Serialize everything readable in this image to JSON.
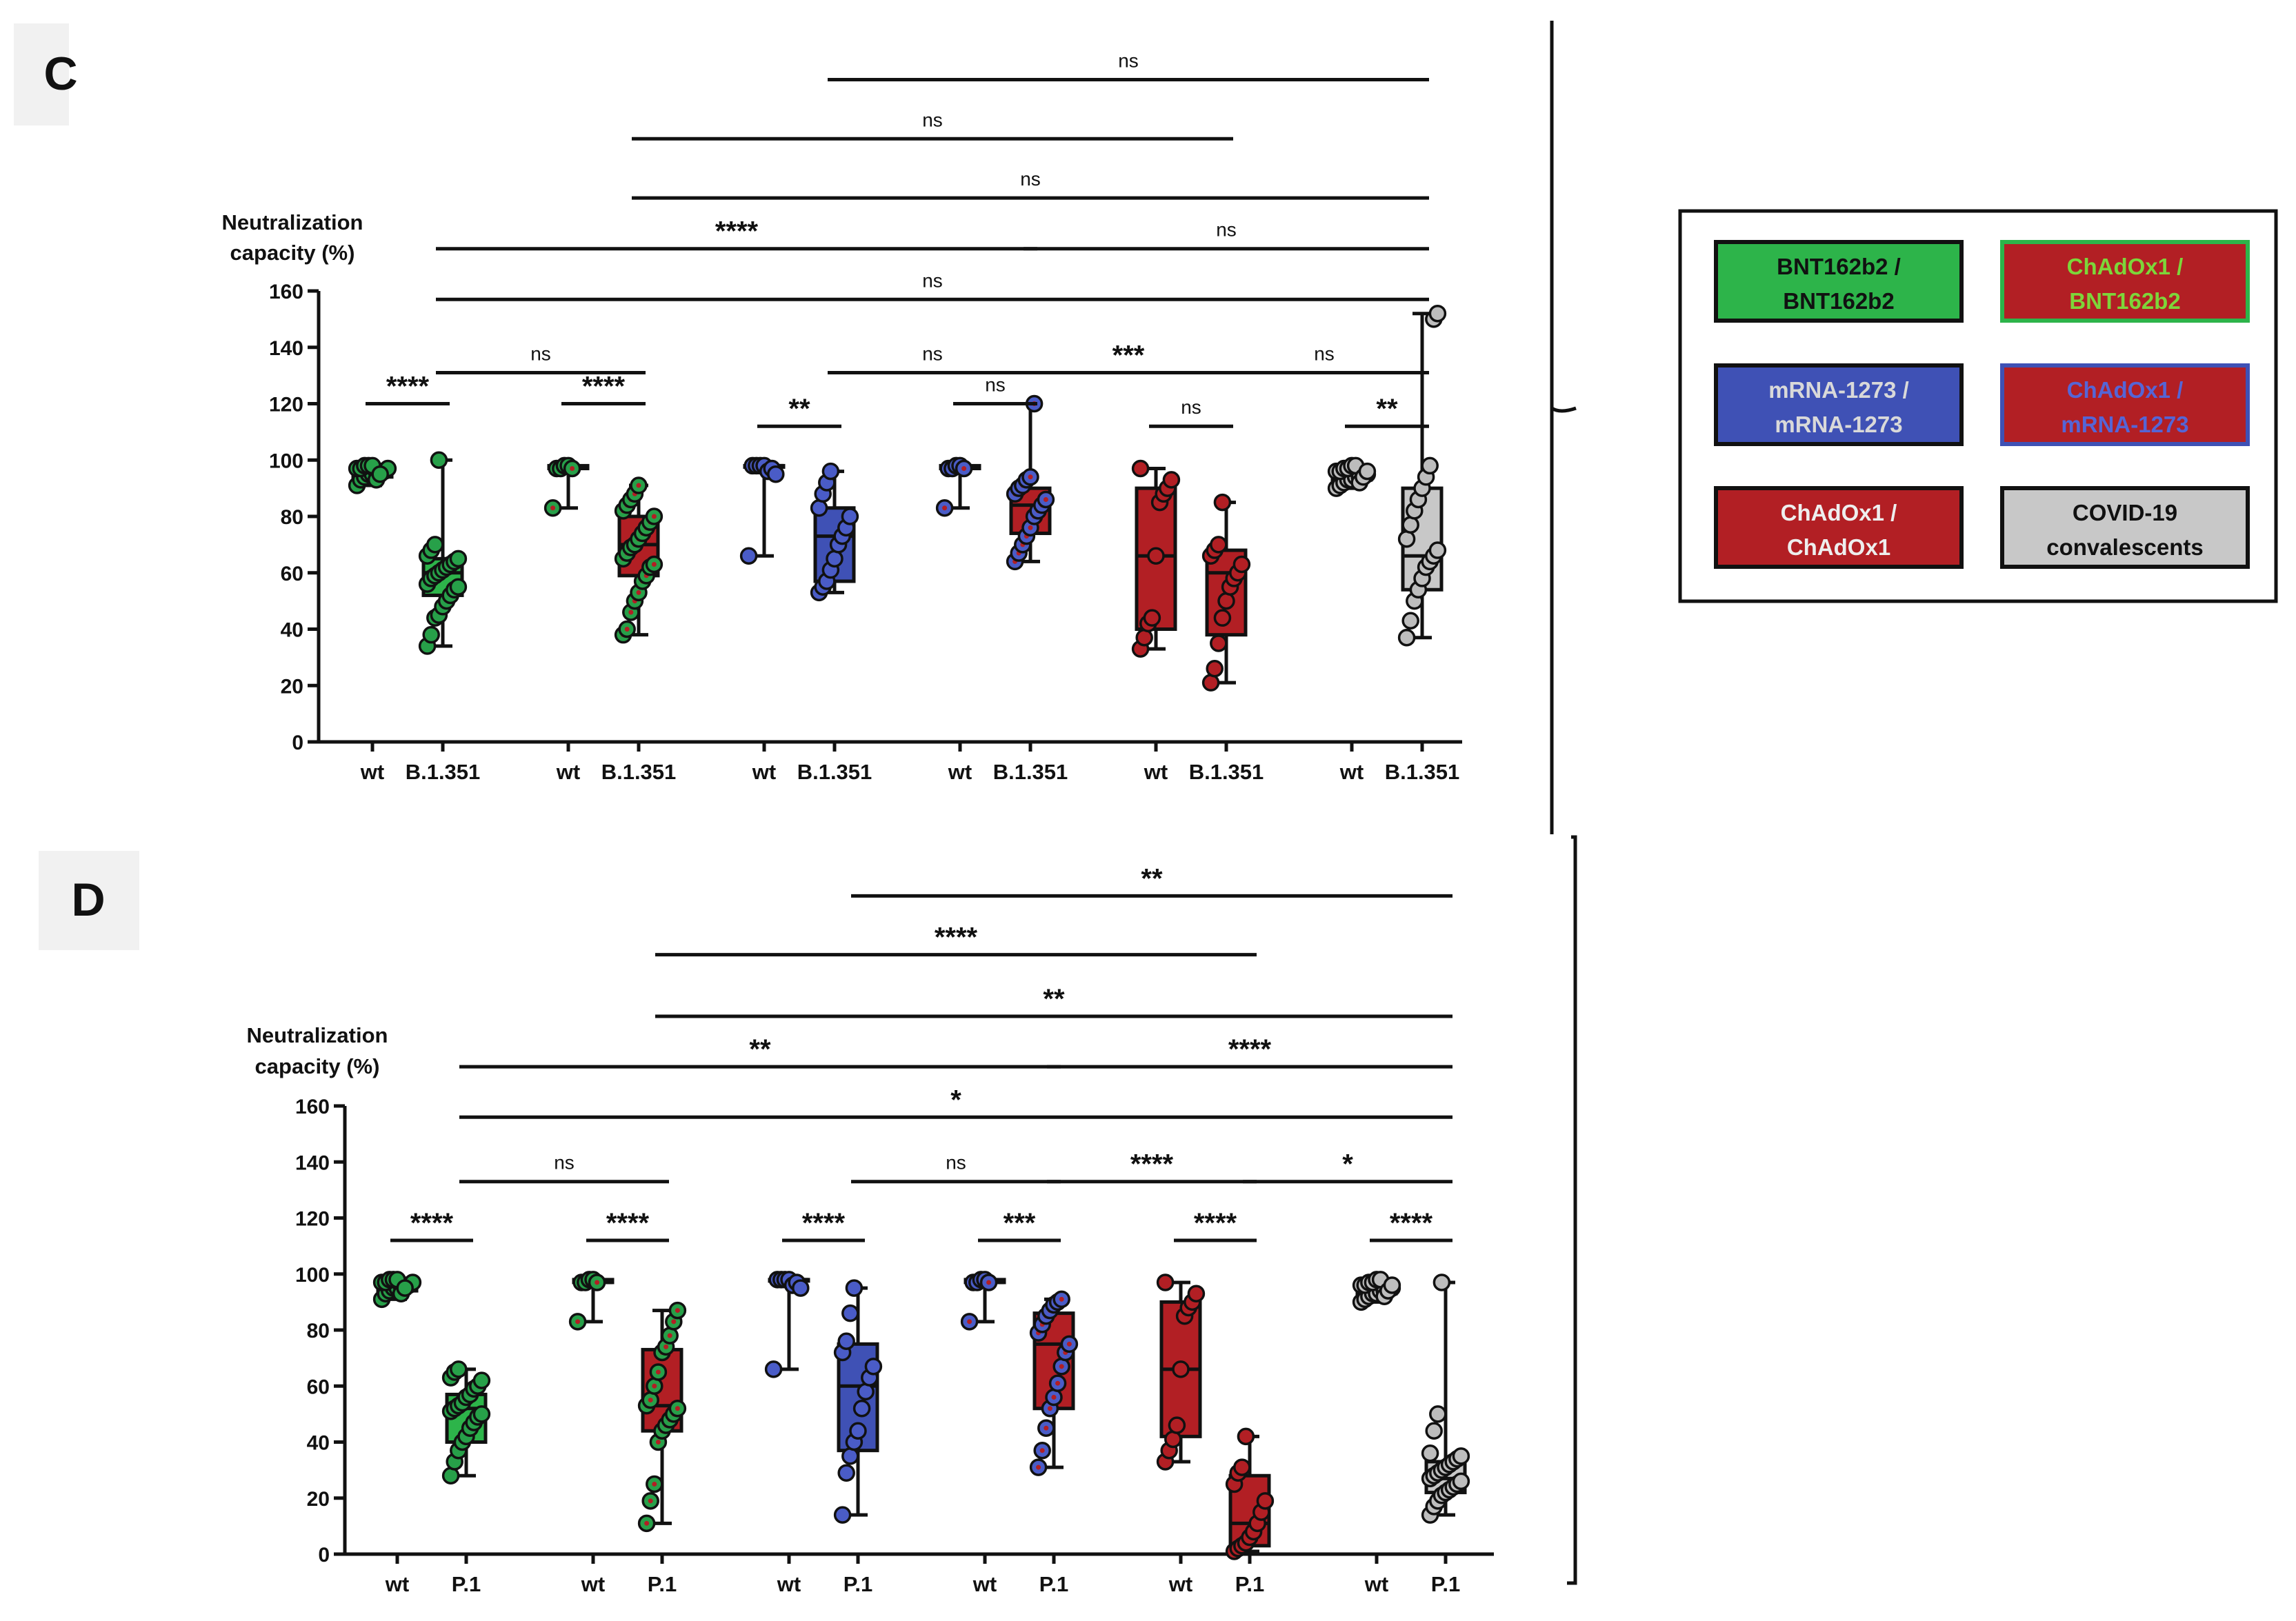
{
  "colors": {
    "bnt": "#2db44a",
    "bnt_dot": "#27a049",
    "mrna": "#3f51b5",
    "mrna_dot": "#4a5cc7",
    "chad": "#b21f24",
    "chad_dot": "#b21f24",
    "conv": "#c8c8c8",
    "conv_dot": "#bdbdbd",
    "dot_center_red": "#b21f24",
    "dot_center_blue": "#4a5cc7"
  },
  "legend": {
    "items": [
      {
        "line1": "BNT162b2 /",
        "line2": "BNT162b2",
        "fill": "#2db44a",
        "text_color": "#111111",
        "border": "#111111"
      },
      {
        "line1": "ChAdOx1 /",
        "line2": "BNT162b2",
        "fill": "#b21f24",
        "text_color": "#7dd63a",
        "border": "#2db44a"
      },
      {
        "line1": "mRNA-1273 /",
        "line2": "mRNA-1273",
        "fill": "#3f51b5",
        "text_color": "#d9d9d9",
        "border": "#111111"
      },
      {
        "line1": "ChAdOx1 /",
        "line2": "mRNA-1273",
        "fill": "#b21f24",
        "text_color": "#5565d6",
        "border": "#3f51b5"
      },
      {
        "line1": "ChAdOx1 /",
        "line2": "ChAdOx1",
        "fill": "#b21f24",
        "text_color": "#eeeeee",
        "border": "#111111"
      },
      {
        "line1": "COVID-19",
        "line2": "convalescents",
        "fill": "#c8c8c8",
        "text_color": "#111111",
        "border": "#111111"
      }
    ]
  },
  "panels": [
    {
      "panel_label": "C",
      "ylabel_line1": "Neutralization",
      "ylabel_line2": "capacity (%)",
      "variant": "B.1.351",
      "xtick_wt": "wt"
    },
    {
      "panel_label": "D",
      "ylabel_line1": "Neutralization",
      "ylabel_line2": "capacity (%)",
      "variant": "P.1",
      "xtick_wt": "wt"
    }
  ],
  "chart_data": [
    {
      "type": "box",
      "title": "C",
      "ylabel": "Neutralization capacity (%)",
      "ylim": [
        0,
        160
      ],
      "yticks": [
        0,
        20,
        40,
        60,
        80,
        100,
        120,
        140,
        160
      ],
      "categories": [
        "wt",
        "B.1.351",
        "wt",
        "B.1.351",
        "wt",
        "B.1.351",
        "wt",
        "B.1.351",
        "wt",
        "B.1.351",
        "wt",
        "B.1.351"
      ],
      "groups": [
        "BNT162b2 / BNT162b2",
        "ChAdOx1 / BNT162b2",
        "mRNA-1273 / mRNA-1273",
        "ChAdOx1 / mRNA-1273",
        "ChAdOx1 / ChAdOx1",
        "COVID-19 convalescents"
      ],
      "boxes": [
        {
          "group": 0,
          "cond": "wt",
          "style": "bnt",
          "min": 91,
          "q1": 94,
          "median": 96,
          "q3": 97,
          "max": 98,
          "points": [
            91,
            93,
            94,
            95,
            95,
            96,
            96,
            96,
            97,
            97,
            97,
            98,
            98,
            98,
            93,
            95
          ]
        },
        {
          "group": 0,
          "cond": "variant",
          "style": "bnt",
          "min": 34,
          "q1": 52,
          "median": 60,
          "q3": 65,
          "max": 100,
          "points": [
            34,
            38,
            44,
            45,
            48,
            50,
            52,
            54,
            55,
            56,
            58,
            59,
            60,
            61,
            62,
            63,
            64,
            65,
            66,
            68,
            70,
            100
          ]
        },
        {
          "group": 1,
          "cond": "wt",
          "style": "bnt_red",
          "min": 83,
          "q1": 97,
          "median": 97,
          "q3": 98,
          "max": 98,
          "points": [
            83,
            97,
            97,
            98,
            98,
            97
          ]
        },
        {
          "group": 1,
          "cond": "variant",
          "style": "chad_green",
          "min": 38,
          "q1": 59,
          "median": 70,
          "q3": 80,
          "max": 91,
          "points": [
            38,
            40,
            46,
            50,
            53,
            57,
            59,
            62,
            63,
            65,
            67,
            69,
            70,
            72,
            74,
            76,
            78,
            80,
            82,
            84,
            86,
            88,
            91
          ]
        },
        {
          "group": 2,
          "cond": "wt",
          "style": "mrna",
          "min": 66,
          "q1": 98,
          "median": 98,
          "q3": 98,
          "max": 98,
          "points": [
            66,
            98,
            98,
            98,
            98,
            96,
            97,
            95
          ]
        },
        {
          "group": 2,
          "cond": "variant",
          "style": "mrna",
          "min": 53,
          "q1": 57,
          "median": 73,
          "q3": 83,
          "max": 96,
          "points": [
            53,
            55,
            57,
            61,
            65,
            70,
            73,
            76,
            80,
            83,
            88,
            92,
            96
          ]
        },
        {
          "group": 3,
          "cond": "wt",
          "style": "mrna_red",
          "min": 83,
          "q1": 97,
          "median": 97,
          "q3": 98,
          "max": 98,
          "points": [
            83,
            97,
            97,
            98,
            98,
            97
          ]
        },
        {
          "group": 3,
          "cond": "variant",
          "style": "chad_blue",
          "min": 64,
          "q1": 74,
          "median": 84,
          "q3": 90,
          "max": 120,
          "points": [
            64,
            67,
            70,
            73,
            76,
            80,
            82,
            84,
            86,
            88,
            90,
            91,
            93,
            94,
            120
          ]
        },
        {
          "group": 4,
          "cond": "wt",
          "style": "chad",
          "min": 33,
          "q1": 40,
          "median": 66,
          "q3": 90,
          "max": 97,
          "points": [
            33,
            37,
            42,
            44,
            66,
            85,
            88,
            90,
            93,
            97
          ]
        },
        {
          "group": 4,
          "cond": "variant",
          "style": "chad",
          "min": 21,
          "q1": 38,
          "median": 60,
          "q3": 68,
          "max": 85,
          "points": [
            21,
            26,
            35,
            44,
            50,
            55,
            58,
            60,
            63,
            66,
            68,
            70,
            85
          ]
        },
        {
          "group": 5,
          "cond": "wt",
          "style": "conv",
          "min": 90,
          "q1": 93,
          "median": 95,
          "q3": 97,
          "max": 98,
          "points": [
            90,
            91,
            92,
            93,
            93,
            94,
            94,
            95,
            95,
            96,
            96,
            97,
            97,
            98,
            98,
            92,
            94,
            96
          ]
        },
        {
          "group": 5,
          "cond": "variant",
          "style": "conv",
          "min": 37,
          "q1": 54,
          "median": 66,
          "q3": 90,
          "max": 152,
          "points": [
            37,
            43,
            50,
            54,
            58,
            62,
            64,
            66,
            68,
            72,
            77,
            82,
            86,
            90,
            94,
            98,
            150,
            152
          ]
        }
      ],
      "comparisons": [
        {
          "from": 0,
          "to": 1,
          "y": 120,
          "label": "****"
        },
        {
          "from": 2,
          "to": 3,
          "y": 120,
          "label": "****"
        },
        {
          "from": 4,
          "to": 5,
          "y": 112,
          "label": "**"
        },
        {
          "from": 6,
          "to": 7,
          "y": 120,
          "label": "ns"
        },
        {
          "from": 8,
          "to": 9,
          "y": 112,
          "label": "ns"
        },
        {
          "from": 10,
          "to": 11,
          "y": 112,
          "label": "**"
        },
        {
          "from": 1,
          "to": 3,
          "y": 131,
          "label": "ns"
        },
        {
          "from": 5,
          "to": 7,
          "y": 131,
          "label": "ns"
        },
        {
          "from": 7,
          "to": 9,
          "y": 131,
          "label": "***"
        },
        {
          "from": 9,
          "to": 11,
          "y": 131,
          "label": "ns"
        },
        {
          "from": 1,
          "to": 11,
          "y": 157,
          "label": "ns"
        },
        {
          "from": 1,
          "to": 7,
          "y": 175,
          "label": "****"
        },
        {
          "from": 7,
          "to": 11,
          "y": 175,
          "label": "ns"
        },
        {
          "from": 3,
          "to": 11,
          "y": 193,
          "label": "ns"
        },
        {
          "from": 3,
          "to": 9,
          "y": 214,
          "label": "ns"
        },
        {
          "from": 5,
          "to": 11,
          "y": 235,
          "label": "ns"
        }
      ]
    },
    {
      "type": "box",
      "title": "D",
      "ylabel": "Neutralization capacity (%)",
      "ylim": [
        0,
        160
      ],
      "yticks": [
        0,
        20,
        40,
        60,
        80,
        100,
        120,
        140,
        160
      ],
      "categories": [
        "wt",
        "P.1",
        "wt",
        "P.1",
        "wt",
        "P.1",
        "wt",
        "P.1",
        "wt",
        "P.1",
        "wt",
        "P.1"
      ],
      "groups": [
        "BNT162b2 / BNT162b2",
        "ChAdOx1 / BNT162b2",
        "mRNA-1273 / mRNA-1273",
        "ChAdOx1 / mRNA-1273",
        "ChAdOx1 / ChAdOx1",
        "COVID-19 convalescents"
      ],
      "boxes": [
        {
          "group": 0,
          "cond": "wt",
          "style": "bnt",
          "min": 91,
          "q1": 94,
          "median": 96,
          "q3": 97,
          "max": 98,
          "points": [
            91,
            93,
            94,
            95,
            95,
            96,
            96,
            96,
            97,
            97,
            97,
            98,
            98,
            98,
            93,
            95
          ]
        },
        {
          "group": 0,
          "cond": "variant",
          "style": "bnt",
          "min": 28,
          "q1": 40,
          "median": 52,
          "q3": 57,
          "max": 66,
          "points": [
            28,
            33,
            37,
            40,
            42,
            45,
            47,
            49,
            50,
            51,
            52,
            53,
            54,
            56,
            57,
            59,
            60,
            62,
            63,
            65,
            66
          ]
        },
        {
          "group": 1,
          "cond": "wt",
          "style": "bnt_red",
          "min": 83,
          "q1": 97,
          "median": 97,
          "q3": 98,
          "max": 98,
          "points": [
            83,
            97,
            97,
            98,
            98,
            97
          ]
        },
        {
          "group": 1,
          "cond": "variant",
          "style": "chad_green",
          "min": 11,
          "q1": 44,
          "median": 53,
          "q3": 73,
          "max": 87,
          "points": [
            11,
            19,
            25,
            40,
            44,
            46,
            48,
            50,
            52,
            53,
            55,
            60,
            65,
            72,
            74,
            78,
            83,
            87
          ]
        },
        {
          "group": 2,
          "cond": "wt",
          "style": "mrna",
          "min": 66,
          "q1": 98,
          "median": 98,
          "q3": 98,
          "max": 98,
          "points": [
            66,
            98,
            98,
            98,
            98,
            96,
            97,
            95
          ]
        },
        {
          "group": 2,
          "cond": "variant",
          "style": "mrna",
          "min": 14,
          "q1": 37,
          "median": 60,
          "q3": 75,
          "max": 95,
          "points": [
            14,
            29,
            35,
            40,
            44,
            52,
            58,
            63,
            67,
            72,
            76,
            86,
            95
          ]
        },
        {
          "group": 3,
          "cond": "wt",
          "style": "mrna_red",
          "min": 83,
          "q1": 97,
          "median": 97,
          "q3": 98,
          "max": 98,
          "points": [
            83,
            97,
            97,
            98,
            98,
            97
          ]
        },
        {
          "group": 3,
          "cond": "variant",
          "style": "chad_blue",
          "min": 31,
          "q1": 52,
          "median": 75,
          "q3": 86,
          "max": 91,
          "points": [
            31,
            37,
            45,
            52,
            56,
            61,
            67,
            72,
            75,
            79,
            82,
            85,
            87,
            89,
            90,
            91
          ]
        },
        {
          "group": 4,
          "cond": "wt",
          "style": "chad",
          "min": 33,
          "q1": 42,
          "median": 66,
          "q3": 90,
          "max": 97,
          "points": [
            33,
            37,
            41,
            46,
            66,
            85,
            88,
            90,
            93,
            97
          ]
        },
        {
          "group": 4,
          "cond": "variant",
          "style": "chad",
          "min": 1,
          "q1": 3,
          "median": 11,
          "q3": 28,
          "max": 42,
          "points": [
            1,
            2,
            3,
            4,
            6,
            8,
            11,
            15,
            19,
            25,
            29,
            31,
            42
          ]
        },
        {
          "group": 5,
          "cond": "wt",
          "style": "conv",
          "min": 90,
          "q1": 93,
          "median": 95,
          "q3": 97,
          "max": 98,
          "points": [
            90,
            91,
            92,
            93,
            93,
            94,
            94,
            95,
            95,
            96,
            96,
            97,
            97,
            98,
            98,
            92,
            94,
            96
          ]
        },
        {
          "group": 5,
          "cond": "variant",
          "style": "conv",
          "min": 14,
          "q1": 22,
          "median": 27,
          "q3": 33,
          "max": 97,
          "points": [
            14,
            17,
            19,
            21,
            22,
            23,
            24,
            25,
            26,
            27,
            28,
            29,
            30,
            31,
            32,
            33,
            34,
            35,
            36,
            44,
            50,
            97
          ]
        }
      ],
      "comparisons": [
        {
          "from": 0,
          "to": 1,
          "y": 112,
          "label": "****"
        },
        {
          "from": 2,
          "to": 3,
          "y": 112,
          "label": "****"
        },
        {
          "from": 4,
          "to": 5,
          "y": 112,
          "label": "****"
        },
        {
          "from": 6,
          "to": 7,
          "y": 112,
          "label": "***"
        },
        {
          "from": 8,
          "to": 9,
          "y": 112,
          "label": "****"
        },
        {
          "from": 10,
          "to": 11,
          "y": 112,
          "label": "****"
        },
        {
          "from": 1,
          "to": 3,
          "y": 133,
          "label": "ns"
        },
        {
          "from": 5,
          "to": 7,
          "y": 133,
          "label": "ns"
        },
        {
          "from": 7,
          "to": 9,
          "y": 133,
          "label": "****"
        },
        {
          "from": 9,
          "to": 11,
          "y": 133,
          "label": "*"
        },
        {
          "from": 1,
          "to": 11,
          "y": 156,
          "label": "*"
        },
        {
          "from": 1,
          "to": 7,
          "y": 174,
          "label": "**"
        },
        {
          "from": 7,
          "to": 11,
          "y": 174,
          "label": "****"
        },
        {
          "from": 3,
          "to": 11,
          "y": 192,
          "label": "**"
        },
        {
          "from": 3,
          "to": 9,
          "y": 214,
          "label": "****"
        },
        {
          "from": 5,
          "to": 11,
          "y": 235,
          "label": "**"
        }
      ]
    }
  ]
}
